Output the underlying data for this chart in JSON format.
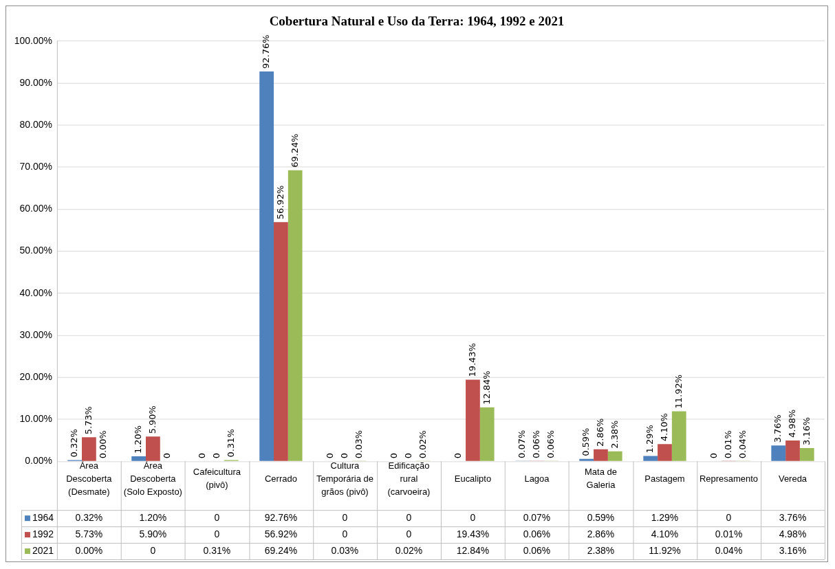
{
  "chart_data": {
    "type": "bar",
    "title": "Cobertura Natural e Uso da Terra: 1964, 1992 e 2021",
    "categories": [
      "Área Descoberta (Desmate)",
      "Área Descoberta (Solo Exposto)",
      "Cafeicultura (pivô)",
      "Cerrado",
      "Cultura Temporária de grãos (pivô)",
      "Edificação rural (carvoeira)",
      "Eucalipto",
      "Lagoa",
      "Mata de Galeria",
      "Pastagem",
      "Represamento",
      "Vereda"
    ],
    "series": [
      {
        "name": "1964",
        "color": "#4f81bd",
        "values": [
          0.32,
          1.2,
          0,
          92.76,
          0,
          0,
          0,
          0.07,
          0.59,
          1.29,
          0,
          3.76
        ],
        "value_labels": [
          "0.32%",
          "1.20%",
          "0",
          "92.76%",
          "0",
          "0",
          "0",
          "0.07%",
          "0.59%",
          "1.29%",
          "0",
          "3.76%"
        ]
      },
      {
        "name": "1992",
        "color": "#c0504d",
        "values": [
          5.73,
          5.9,
          0,
          56.92,
          0,
          0,
          19.43,
          0.06,
          2.86,
          4.1,
          0.01,
          4.98
        ],
        "value_labels": [
          "5.73%",
          "5.90%",
          "0",
          "56.92%",
          "0",
          "0",
          "19.43%",
          "0.06%",
          "2.86%",
          "4.10%",
          "0.01%",
          "4.98%"
        ]
      },
      {
        "name": "2021",
        "color": "#9bbb59",
        "values": [
          0.0,
          0,
          0.31,
          69.24,
          0.03,
          0.02,
          12.84,
          0.06,
          2.38,
          11.92,
          0.04,
          3.16
        ],
        "value_labels": [
          "0.00%",
          "0",
          "0.31%",
          "69.24%",
          "0.03%",
          "0.02%",
          "12.84%",
          "0.06%",
          "2.38%",
          "11.92%",
          "0.04%",
          "3.16%"
        ]
      }
    ],
    "ylim": [
      0,
      100
    ],
    "yticks": [
      {
        "value": 0,
        "label": "0.00%"
      },
      {
        "value": 10,
        "label": "10.00%"
      },
      {
        "value": 20,
        "label": "20.00%"
      },
      {
        "value": 30,
        "label": "30.00%"
      },
      {
        "value": 40,
        "label": "40.00%"
      },
      {
        "value": 50,
        "label": "50.00%"
      },
      {
        "value": 60,
        "label": "60.00%"
      },
      {
        "value": 70,
        "label": "70.00%"
      },
      {
        "value": 80,
        "label": "80.00%"
      },
      {
        "value": 90,
        "label": "90.00%"
      },
      {
        "value": 100,
        "label": "100.00%"
      }
    ],
    "grid": "y",
    "legend": "bottom"
  }
}
